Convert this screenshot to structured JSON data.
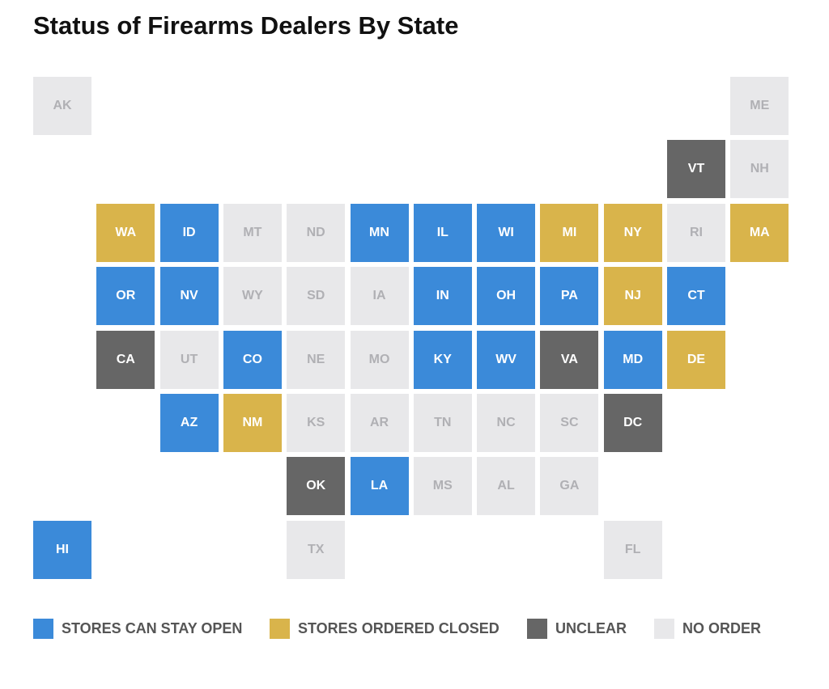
{
  "title": "Status of Firearms Dealers By State",
  "legend": [
    {
      "label": "STORES CAN STAY OPEN",
      "color": "#3b8ad9",
      "states": [
        "ID",
        "MN",
        "IL",
        "WI",
        "OR",
        "NV",
        "IN",
        "OH",
        "PA",
        "CT",
        "CO",
        "KY",
        "WV",
        "MD",
        "AZ",
        "LA",
        "HI"
      ]
    },
    {
      "label": "STORES ORDERED CLOSED",
      "color": "#d9b44b",
      "states": [
        "WA",
        "MI",
        "NY",
        "MA",
        "NJ",
        "DE",
        "NM"
      ]
    },
    {
      "label": "UNCLEAR",
      "color": "#666666",
      "states": [
        "VT",
        "CA",
        "VA",
        "DC",
        "OK"
      ]
    },
    {
      "label": "NO ORDER",
      "color": "#e8e8ea",
      "states": [
        "AK",
        "ME",
        "NH",
        "MT",
        "ND",
        "RI",
        "WY",
        "SD",
        "IA",
        "UT",
        "NE",
        "MO",
        "KS",
        "AR",
        "TN",
        "NC",
        "SC",
        "MS",
        "AL",
        "GA",
        "TX",
        "FL"
      ]
    }
  ]
}
